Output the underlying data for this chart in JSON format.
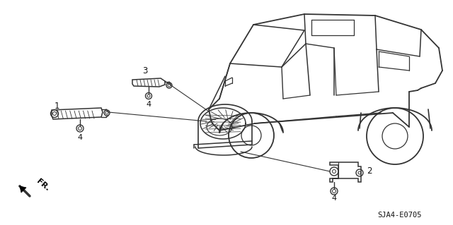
{
  "bg_color": "#ffffff",
  "diagram_code": "SJA4-E0705",
  "line_color": "#333333",
  "text_color": "#111111",
  "fig_w": 6.4,
  "fig_h": 3.19,
  "dpi": 100
}
